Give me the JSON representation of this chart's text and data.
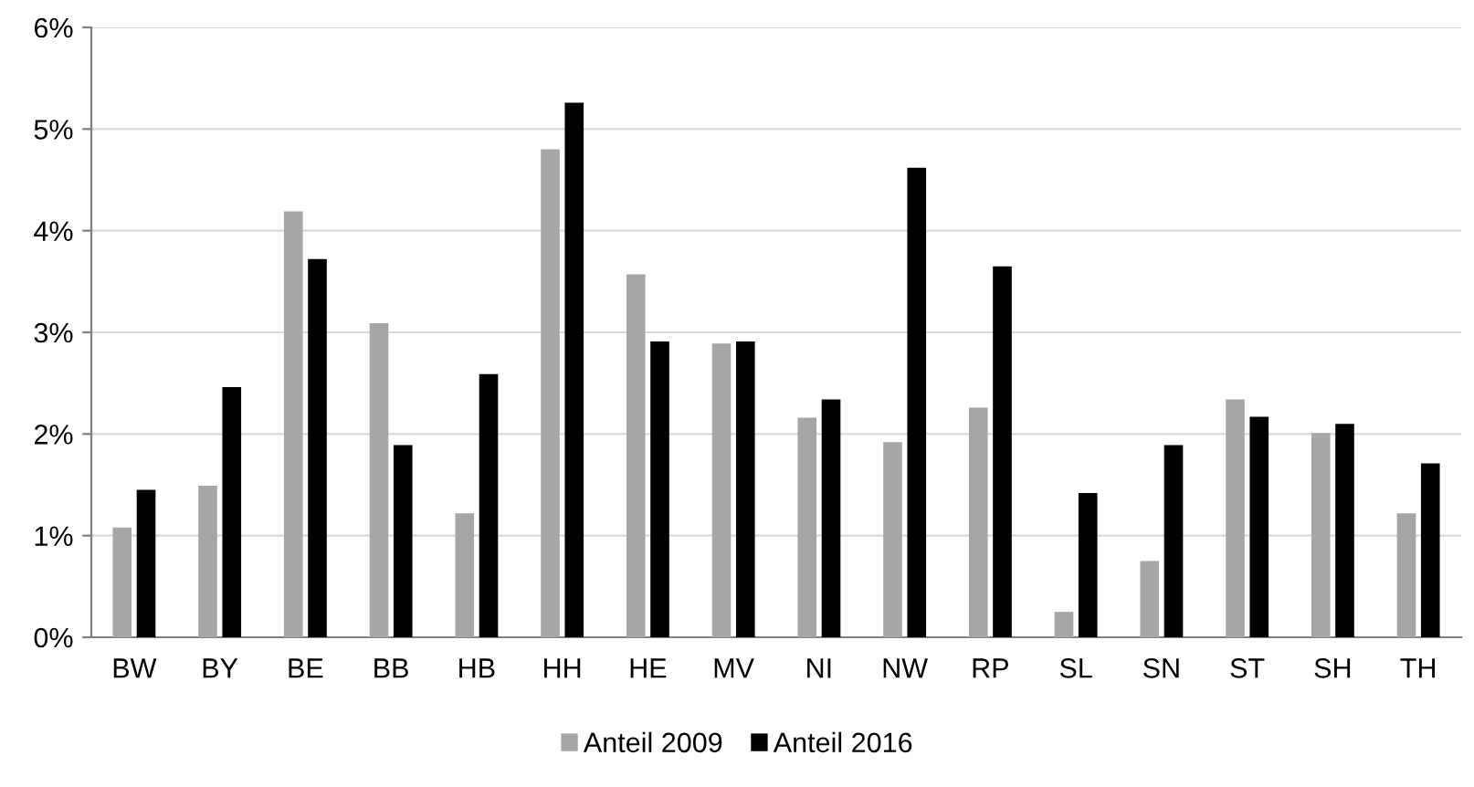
{
  "chart_data": {
    "type": "bar",
    "categories": [
      "BW",
      "BY",
      "BE",
      "BB",
      "HB",
      "HH",
      "HE",
      "MV",
      "NI",
      "NW",
      "RP",
      "SL",
      "SN",
      "ST",
      "SH",
      "TH"
    ],
    "series": [
      {
        "name": "Anteil 2009",
        "color": "#a6a6a6",
        "values": [
          1.08,
          1.49,
          4.19,
          3.09,
          1.22,
          4.8,
          3.57,
          2.89,
          2.16,
          1.92,
          2.26,
          0.25,
          0.75,
          2.34,
          2.01,
          1.22
        ]
      },
      {
        "name": "Anteil 2016",
        "color": "#000000",
        "values": [
          1.45,
          2.46,
          3.72,
          1.89,
          2.59,
          5.26,
          2.91,
          2.91,
          2.34,
          4.62,
          3.65,
          1.42,
          1.89,
          2.17,
          2.1,
          1.71
        ]
      }
    ],
    "ylim": [
      0,
      6
    ],
    "yticks": [
      {
        "value": 0,
        "label": "0%"
      },
      {
        "value": 1,
        "label": "1%"
      },
      {
        "value": 2,
        "label": "2%"
      },
      {
        "value": 3,
        "label": "3%"
      },
      {
        "value": 4,
        "label": "4%"
      },
      {
        "value": 5,
        "label": "5%"
      },
      {
        "value": 6,
        "label": "6%"
      }
    ],
    "grid": "y",
    "legend": "bottom"
  }
}
